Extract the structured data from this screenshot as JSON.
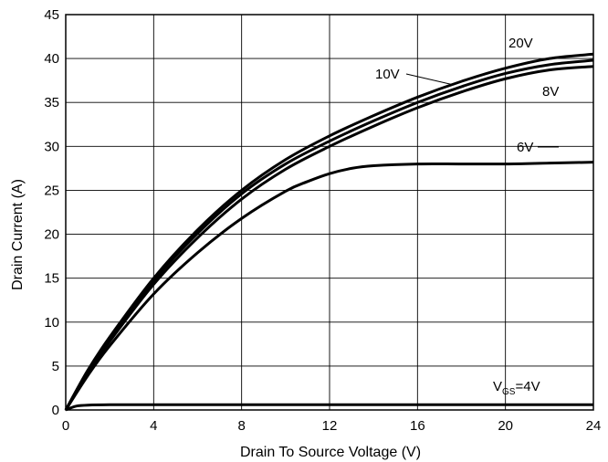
{
  "chart_data": {
    "type": "line",
    "xlabel": "Drain To Source Voltage (V)",
    "ylabel": "Drain Current (A)",
    "xlim": [
      0,
      24
    ],
    "ylim": [
      0,
      45
    ],
    "xticks": [
      0,
      4,
      8,
      12,
      16,
      20,
      24
    ],
    "yticks": [
      0,
      5,
      10,
      15,
      20,
      25,
      30,
      35,
      40,
      45
    ],
    "grid": true,
    "series": [
      {
        "name": "20V",
        "x": [
          0,
          1,
          2,
          4,
          6,
          8,
          10,
          12,
          14,
          16,
          18,
          20,
          22,
          24
        ],
        "y": [
          0,
          4.5,
          8.3,
          15.0,
          20.5,
          25.0,
          28.5,
          31.2,
          33.5,
          35.6,
          37.4,
          38.9,
          40.0,
          40.5
        ]
      },
      {
        "name": "10V",
        "x": [
          0,
          1,
          2,
          4,
          6,
          8,
          10,
          12,
          14,
          16,
          18,
          20,
          22,
          24
        ],
        "y": [
          0,
          4.4,
          8.1,
          14.7,
          20.1,
          24.6,
          28.0,
          30.6,
          32.9,
          35.0,
          36.8,
          38.3,
          39.3,
          39.8
        ]
      },
      {
        "name": "8V",
        "x": [
          0,
          1,
          2,
          4,
          6,
          8,
          10,
          12,
          14,
          16,
          18,
          20,
          22,
          24
        ],
        "y": [
          0,
          4.2,
          7.8,
          14.3,
          19.6,
          24.0,
          27.4,
          30.0,
          32.3,
          34.4,
          36.2,
          37.7,
          38.7,
          39.1
        ]
      },
      {
        "name": "6V",
        "x": [
          0,
          1,
          2,
          4,
          6,
          8,
          10,
          11,
          12,
          13,
          14,
          16,
          18,
          20,
          22,
          24
        ],
        "y": [
          0,
          3.9,
          7.3,
          13.2,
          17.9,
          21.8,
          24.9,
          26.0,
          26.9,
          27.5,
          27.8,
          28.0,
          28.0,
          28.0,
          28.1,
          28.2
        ]
      },
      {
        "name": "VGS=4V",
        "x": [
          0,
          0.2,
          0.5,
          1,
          2,
          4,
          8,
          12,
          16,
          20,
          24
        ],
        "y": [
          0,
          0.2,
          0.45,
          0.55,
          0.6,
          0.6,
          0.6,
          0.6,
          0.6,
          0.6,
          0.6
        ]
      }
    ],
    "annotations": [
      {
        "series": "20V",
        "text": "20V"
      },
      {
        "series": "10V",
        "text": "10V"
      },
      {
        "series": "8V",
        "text": "8V"
      },
      {
        "series": "6V",
        "text": "6V"
      },
      {
        "series": "VGS=4V",
        "text_main": "V",
        "text_sub": "GS",
        "text_tail": "=4V"
      }
    ]
  }
}
